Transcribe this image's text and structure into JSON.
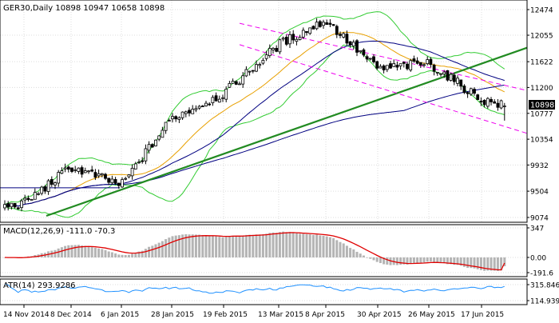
{
  "chart_data": [
    {
      "type": "candlestick",
      "title": "GER30,Daily 10898 10947 10658 10898",
      "symbol": "GER30",
      "timeframe": "Daily",
      "ohlc": {
        "open": 10898,
        "high": 10947,
        "low": 10658,
        "close": 10898
      },
      "current_price_label": "10898",
      "y_ticks": [
        "12474",
        "12055",
        "11622",
        "11200",
        "10777",
        "10354",
        "9932",
        "9504",
        "9074"
      ],
      "x_ticks": [
        "14 Nov 2014",
        "8 Dec 2014",
        "6 Jan 2015",
        "28 Jan 2015",
        "19 Feb 2015",
        "13 Mar 2015",
        "8 Apr 2015",
        "30 Apr 2015",
        "26 May 2015",
        "17 Jun 2015"
      ],
      "approx_closes_by_x_tick": {
        "14 Nov 2014": 9300,
        "8 Dec 2014": 9900,
        "6 Jan 2015": 9600,
        "28 Jan 2015": 10700,
        "19 Feb 2015": 11100,
        "13 Mar 2015": 11900,
        "8 Apr 2015": 12300,
        "30 Apr 2015": 11500,
        "26 May 2015": 11600,
        "17 Jun 2015": 11000
      },
      "overlays": [
        "Bollinger Bands",
        "moving averages",
        "long-term trendline",
        "descending channel"
      ],
      "colors": {
        "bull": "#ffffff",
        "bear": "#000000",
        "band": "#33cc33",
        "ma_blue": "#000080",
        "ma_orange": "#e8a000",
        "trendline": "#228b22",
        "channel": "#ee00ee"
      }
    },
    {
      "type": "histogram",
      "title": "MACD(12,26,9) -111.0 -70.3",
      "indicator": "MACD",
      "params": [
        12,
        26,
        9
      ],
      "macd": -111.0,
      "signal": -70.3,
      "y_ticks": [
        "347",
        "0.00",
        "-191.6"
      ],
      "colors": {
        "histogram": "#b4b4b4",
        "signal": "#e00000"
      }
    },
    {
      "type": "line",
      "title": "ATR(14) 293.9286",
      "indicator": "ATR",
      "period": 14,
      "value": 293.9286,
      "y_ticks": [
        "315.8464",
        "114.9393"
      ],
      "colors": {
        "line": "#1e90ff"
      }
    }
  ]
}
